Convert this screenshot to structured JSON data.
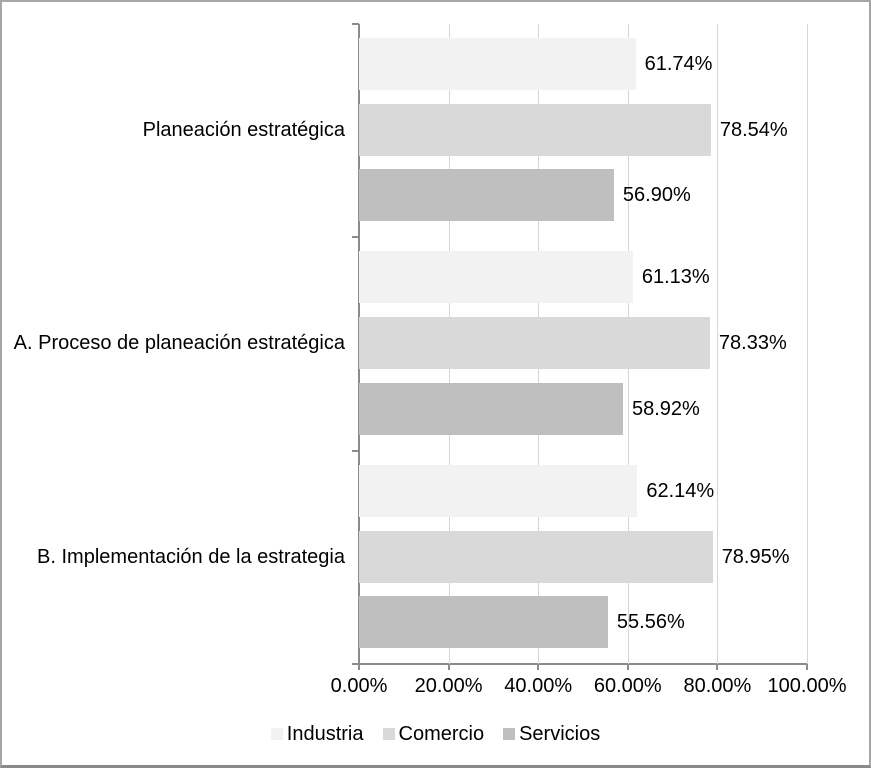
{
  "chart_data": {
    "type": "bar",
    "orientation": "horizontal",
    "title": "",
    "categories": [
      "Planeación estratégica",
      "A. Proceso de planeación estratégica",
      "B. Implementación de la estrategia"
    ],
    "series": [
      {
        "name": "Industria",
        "color": "#f2f2f2",
        "values": [
          61.74,
          61.13,
          62.14
        ]
      },
      {
        "name": "Comercio",
        "color": "#d9d9d9",
        "values": [
          78.54,
          78.33,
          78.95
        ]
      },
      {
        "name": "Servicios",
        "color": "#bfbfbf",
        "values": [
          56.9,
          58.92,
          55.56
        ]
      }
    ],
    "data_labels": [
      [
        "61.74%",
        "78.54%",
        "56.90%"
      ],
      [
        "61.13%",
        "78.33%",
        "58.92%"
      ],
      [
        "62.14%",
        "78.95%",
        "55.56%"
      ]
    ],
    "x_axis": {
      "ticks": [
        "0.00%",
        "20.00%",
        "40.00%",
        "60.00%",
        "80.00%",
        "100.00%"
      ],
      "min": 0,
      "max": 100
    },
    "grid": true,
    "legend": {
      "position": "bottom",
      "entries": [
        "Industria",
        "Comercio",
        "Servicios"
      ]
    },
    "colors": {
      "axis": "#8c8c8c",
      "gridline": "#d6d6d6",
      "text": "#000000"
    }
  }
}
